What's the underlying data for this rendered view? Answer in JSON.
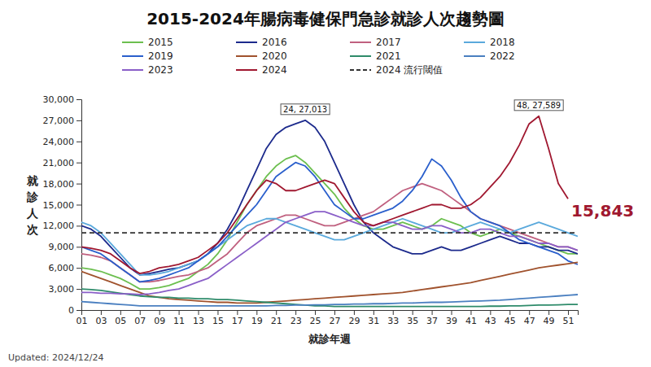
{
  "chart_data": {
    "type": "line",
    "title": "2015-2024年腸病毒健保門急診就診人次趨勢圖",
    "x_label": "就診年週",
    "y_label": "就診人次",
    "footnote": "Updated: 2024/12/24",
    "x": [
      1,
      2,
      3,
      4,
      5,
      6,
      7,
      8,
      9,
      10,
      11,
      12,
      13,
      14,
      15,
      16,
      17,
      18,
      19,
      20,
      21,
      22,
      23,
      24,
      25,
      26,
      27,
      28,
      29,
      30,
      31,
      32,
      33,
      34,
      35,
      36,
      37,
      38,
      39,
      40,
      41,
      42,
      43,
      44,
      45,
      46,
      47,
      48,
      49,
      50,
      51,
      52
    ],
    "xlim": [
      1,
      52
    ],
    "xticks": [
      {
        "value": 1,
        "label": "01"
      },
      {
        "value": 3,
        "label": "03"
      },
      {
        "value": 5,
        "label": "05"
      },
      {
        "value": 7,
        "label": "07"
      },
      {
        "value": 9,
        "label": "09"
      },
      11,
      13,
      15,
      17,
      19,
      21,
      23,
      25,
      27,
      29,
      31,
      33,
      35,
      37,
      39,
      41,
      43,
      45,
      47,
      49,
      51
    ],
    "ylim": [
      0,
      30000
    ],
    "yticks": [
      0,
      {
        "value": 3000,
        "label": "3,000"
      },
      {
        "value": 6000,
        "label": "6,000"
      },
      {
        "value": 9000,
        "label": "9,000"
      },
      {
        "value": 12000,
        "label": "12,000"
      },
      {
        "value": 15000,
        "label": "15,000"
      },
      {
        "value": 18000,
        "label": "18,000"
      },
      {
        "value": 21000,
        "label": "21,000"
      },
      {
        "value": 24000,
        "label": "24,000"
      },
      {
        "value": 27000,
        "label": "27,000"
      },
      {
        "value": 30000,
        "label": "30,000"
      }
    ],
    "grid": false,
    "legend": "top",
    "series": [
      {
        "name": "2015",
        "color": "#6cbf4f",
        "values": [
          6000,
          5800,
          5500,
          5000,
          4500,
          3800,
          3000,
          3000,
          3200,
          3500,
          4000,
          4500,
          5500,
          6500,
          8000,
          10000,
          12500,
          15000,
          17000,
          19000,
          20500,
          21500,
          22000,
          21000,
          19500,
          18000,
          16500,
          14500,
          13000,
          12000,
          11500,
          11500,
          12000,
          12500,
          12000,
          11500,
          12000,
          13000,
          12500,
          12000,
          11000,
          10500,
          11000,
          11500,
          11000,
          10500,
          10000,
          9500,
          9000,
          8500,
          8000,
          8000
        ]
      },
      {
        "name": "2016",
        "color": "#1c2a8c",
        "values": [
          12000,
          11500,
          10500,
          9000,
          7500,
          6000,
          5000,
          5200,
          5500,
          5800,
          6000,
          6500,
          7000,
          8000,
          9500,
          11500,
          14000,
          17000,
          20000,
          23000,
          25000,
          26000,
          26500,
          27013,
          26000,
          24000,
          21000,
          18000,
          15000,
          12500,
          11000,
          10000,
          9000,
          8500,
          8000,
          8000,
          8500,
          9000,
          8500,
          8500,
          9000,
          9500,
          10000,
          10500,
          10000,
          9500,
          9500,
          9000,
          9000,
          8500,
          8500,
          8000
        ]
      },
      {
        "name": "2017",
        "color": "#c0607f",
        "values": [
          8000,
          7800,
          7500,
          7000,
          6000,
          5000,
          4000,
          4000,
          4200,
          4500,
          4800,
          5000,
          5500,
          6000,
          7000,
          8000,
          9500,
          11000,
          12000,
          12500,
          13000,
          13500,
          13500,
          13000,
          12500,
          12000,
          12000,
          12500,
          13000,
          13500,
          14000,
          15000,
          16000,
          17000,
          17500,
          18000,
          17500,
          17000,
          16000,
          15000,
          14000,
          13000,
          12500,
          12000,
          11500,
          11000,
          10500,
          10000,
          9500,
          9000,
          9000,
          8500
        ]
      },
      {
        "name": "2018",
        "color": "#5aa9dc",
        "values": [
          12500,
          12000,
          11000,
          9500,
          8000,
          6500,
          5000,
          5000,
          5200,
          5500,
          6000,
          6500,
          7000,
          8000,
          9000,
          10000,
          11000,
          12000,
          12500,
          13000,
          13000,
          12500,
          12000,
          11500,
          11000,
          10500,
          10000,
          10000,
          10500,
          11000,
          11500,
          12000,
          12500,
          13000,
          12500,
          12000,
          11500,
          11000,
          11000,
          11500,
          12000,
          12500,
          12000,
          11500,
          11000,
          11500,
          12000,
          12500,
          12000,
          11500,
          11000,
          10500
        ]
      },
      {
        "name": "2019",
        "color": "#2a5fcc",
        "values": [
          9000,
          8500,
          8000,
          7000,
          6000,
          5000,
          4000,
          4200,
          4500,
          5000,
          5500,
          6000,
          7000,
          8000,
          9000,
          10500,
          12000,
          13500,
          15000,
          17000,
          19000,
          20000,
          21000,
          20500,
          19000,
          17000,
          15000,
          14000,
          13000,
          13000,
          13500,
          14000,
          14500,
          15500,
          17000,
          19000,
          21500,
          20500,
          18500,
          16000,
          14000,
          13000,
          12500,
          12000,
          11000,
          10000,
          9500,
          9000,
          8500,
          8000,
          7000,
          6500
        ]
      },
      {
        "name": "2020",
        "color": "#a0522d",
        "values": [
          5500,
          5000,
          4500,
          4000,
          3500,
          3000,
          2500,
          2000,
          1800,
          1600,
          1500,
          1400,
          1300,
          1200,
          1100,
          1100,
          1000,
          1000,
          1000,
          1100,
          1200,
          1300,
          1400,
          1500,
          1600,
          1700,
          1800,
          1900,
          2000,
          2100,
          2200,
          2300,
          2400,
          2500,
          2700,
          2900,
          3100,
          3300,
          3500,
          3700,
          3900,
          4200,
          4500,
          4800,
          5100,
          5400,
          5700,
          6000,
          6200,
          6400,
          6600,
          6800
        ]
      },
      {
        "name": "2021",
        "color": "#2e8b6a",
        "values": [
          3000,
          2900,
          2800,
          2600,
          2400,
          2200,
          2000,
          1900,
          1800,
          1800,
          1700,
          1700,
          1600,
          1600,
          1500,
          1500,
          1400,
          1300,
          1200,
          1100,
          1000,
          900,
          800,
          700,
          600,
          600,
          500,
          500,
          500,
          500,
          500,
          500,
          500,
          500,
          500,
          500,
          500,
          500,
          500,
          500,
          500,
          500,
          550,
          550,
          600,
          600,
          650,
          700,
          700,
          750,
          800,
          800
        ]
      },
      {
        "name": "2022",
        "color": "#4a7fc0",
        "values": [
          1200,
          1100,
          1000,
          900,
          800,
          700,
          600,
          600,
          600,
          600,
          600,
          600,
          600,
          600,
          600,
          600,
          600,
          600,
          600,
          600,
          650,
          650,
          700,
          700,
          750,
          750,
          800,
          800,
          850,
          850,
          900,
          900,
          950,
          1000,
          1000,
          1050,
          1100,
          1100,
          1150,
          1200,
          1250,
          1300,
          1350,
          1400,
          1500,
          1600,
          1700,
          1800,
          1900,
          2000,
          2100,
          2200
        ]
      },
      {
        "name": "2023",
        "color": "#8a5fc8",
        "values": [
          2500,
          2500,
          2400,
          2400,
          2300,
          2300,
          2200,
          2300,
          2500,
          2800,
          3000,
          3500,
          4000,
          4500,
          5500,
          6500,
          7500,
          8500,
          9500,
          10500,
          11500,
          12500,
          13000,
          13500,
          14000,
          14000,
          13500,
          13000,
          12500,
          12000,
          12000,
          12500,
          12500,
          12000,
          11500,
          11500,
          12000,
          12000,
          11500,
          11000,
          11000,
          11500,
          11500,
          11000,
          10500,
          10500,
          10000,
          9500,
          9500,
          9000,
          9000,
          8500
        ]
      },
      {
        "name": "2024",
        "color": "#a01830",
        "values": [
          9000,
          8800,
          8500,
          8000,
          7000,
          6000,
          5200,
          5500,
          6000,
          6200,
          6500,
          7000,
          7500,
          8500,
          9500,
          11000,
          13000,
          15000,
          17000,
          18500,
          18000,
          17000,
          17000,
          17500,
          18000,
          18500,
          18000,
          16000,
          14000,
          12500,
          12000,
          12500,
          13000,
          13500,
          14000,
          14500,
          15000,
          15000,
          14500,
          14500,
          15000,
          16000,
          17500,
          19000,
          21000,
          23500,
          26500,
          27589,
          23000,
          18000,
          15843,
          null
        ]
      },
      {
        "name": "2024 流行閾值",
        "color": "#333333",
        "line_style": "dashed",
        "values": [
          11000,
          11000,
          11000,
          11000,
          11000,
          11000,
          11000,
          11000,
          11000,
          11000,
          11000,
          11000,
          11000,
          11000,
          11000,
          11000,
          11000,
          11000,
          11000,
          11000,
          11000,
          11000,
          11000,
          11000,
          11000,
          11000,
          11000,
          11000,
          11000,
          11000,
          11000,
          11000,
          11000,
          11000,
          11000,
          11000,
          11000,
          11000,
          11000,
          11000,
          11000,
          11000,
          11000,
          11000,
          11000,
          11000,
          11000,
          11000,
          11000,
          11000,
          11000,
          11000
        ]
      }
    ],
    "annotations": [
      {
        "text": "24, 27,013",
        "x": 24,
        "y": 27013
      },
      {
        "text": "48, 27,589",
        "x": 48,
        "y": 27589
      },
      {
        "text": "15,843",
        "x": 51,
        "y": 15843,
        "color": "#a01830"
      }
    ]
  }
}
